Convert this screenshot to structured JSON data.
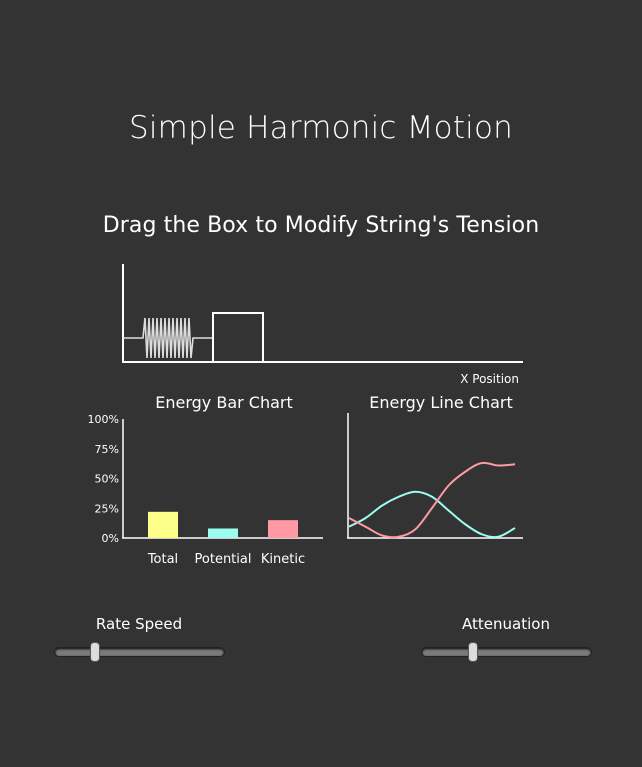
{
  "page": {
    "title": "Simple Harmonic Motion",
    "subtitle": "Drag the Box to Modify String's Tension"
  },
  "simulation": {
    "xlabel": "X Position"
  },
  "chart_data": [
    {
      "type": "bar",
      "title": "Energy Bar Chart",
      "categories": [
        "Total",
        "Potential",
        "Kinetic"
      ],
      "values": [
        22,
        8,
        15
      ],
      "ylim": [
        0,
        100
      ],
      "yticks": [
        "100%",
        "75%",
        "50%",
        "25%",
        "0%"
      ],
      "colors": [
        "#fbff87",
        "#9bfcef",
        "#ff9aa5"
      ]
    },
    {
      "type": "line",
      "title": "Energy Line Chart",
      "series": [
        {
          "color": "#9bfcef",
          "values": [
            9,
            16,
            26,
            33,
            37,
            33,
            22,
            11,
            3,
            1,
            8
          ]
        },
        {
          "color": "#ff9aa5",
          "values": [
            16,
            9,
            2,
            1,
            7,
            24,
            42,
            53,
            60,
            58,
            59
          ]
        }
      ]
    }
  ],
  "controls": {
    "rate_speed": {
      "label": "Rate Speed",
      "value": 0.22
    },
    "attenuation": {
      "label": "Attenuation",
      "value": 0.29
    }
  }
}
